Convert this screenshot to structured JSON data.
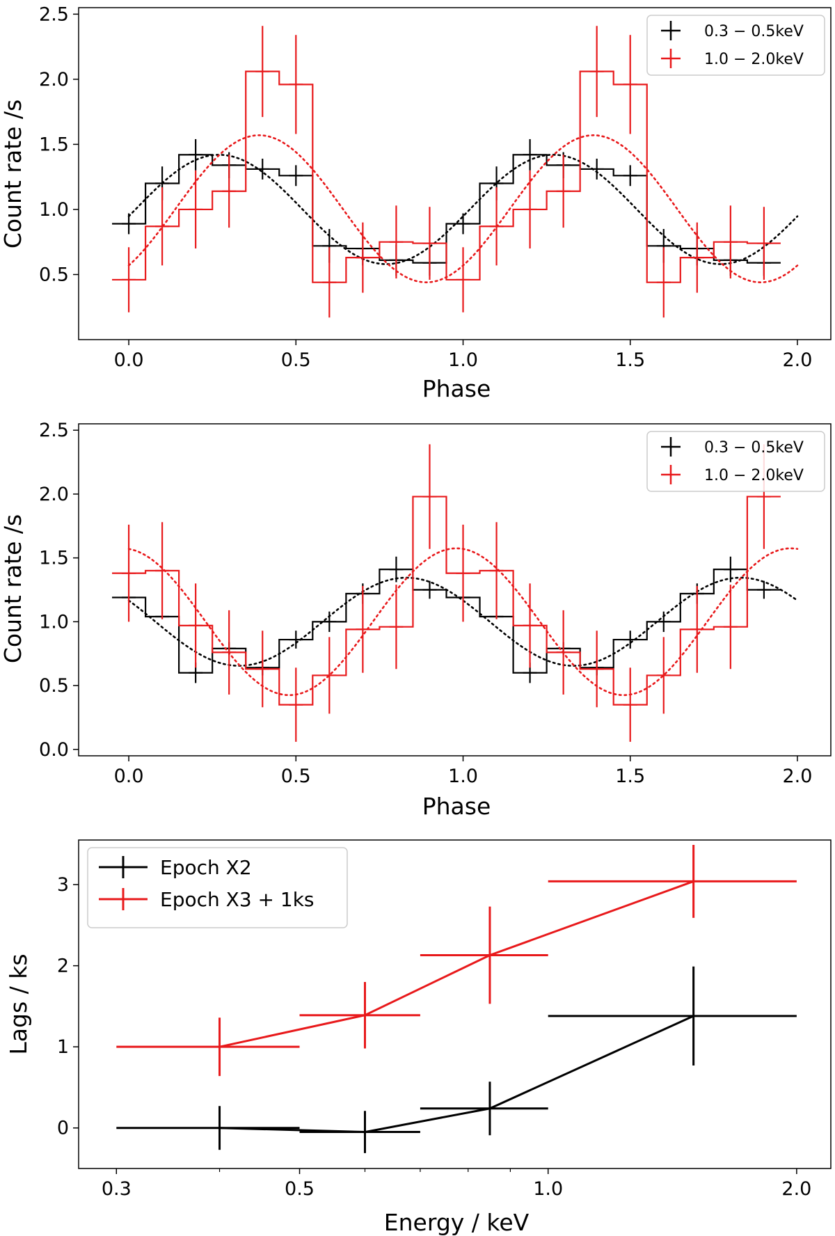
{
  "chart_data": [
    {
      "type": "line",
      "panel": "top",
      "title": "",
      "xlabel": "Phase",
      "ylabel": "Count rate /s",
      "xlim": [
        -0.15,
        2.1
      ],
      "ylim": [
        0.0,
        2.55
      ],
      "xticks": [
        0.0,
        0.5,
        1.0,
        1.5,
        2.0
      ],
      "xtick_labels": [
        "0.0",
        "0.5",
        "1.0",
        "1.5",
        "2.0"
      ],
      "yticks": [
        0.5,
        1.0,
        1.5,
        2.0,
        2.5
      ],
      "ytick_labels": [
        "0.5",
        "1.0",
        "1.5",
        "2.0",
        "2.5"
      ],
      "legend_position": "top-right",
      "series": [
        {
          "name": "0.3 − 0.5keV",
          "color": "#000000",
          "x": [
            0.0,
            0.1,
            0.2,
            0.3,
            0.4,
            0.5,
            0.6,
            0.7,
            0.8,
            0.9,
            1.0,
            1.1,
            1.2,
            1.3,
            1.4,
            1.5,
            1.6,
            1.7,
            1.8,
            1.9
          ],
          "y": [
            0.89,
            1.2,
            1.42,
            1.34,
            1.31,
            1.26,
            0.72,
            0.7,
            0.61,
            0.59,
            0.89,
            1.2,
            1.42,
            1.34,
            1.31,
            1.26,
            0.72,
            0.7,
            0.61,
            0.59
          ],
          "yerr": [
            0.08,
            0.13,
            0.12,
            0.1,
            0.08,
            0.08,
            0.13,
            0.13,
            0.12,
            0.1,
            0.08,
            0.13,
            0.12,
            0.1,
            0.08,
            0.08,
            0.13,
            0.13,
            0.12,
            0.1
          ],
          "model": {
            "mean": 1.0,
            "amplitude": 0.42,
            "peak_phase": 0.27
          }
        },
        {
          "name": "1.0 − 2.0keV",
          "color": "#e8191b",
          "x": [
            0.0,
            0.1,
            0.2,
            0.3,
            0.4,
            0.5,
            0.6,
            0.7,
            0.8,
            0.9,
            1.0,
            1.1,
            1.2,
            1.3,
            1.4,
            1.5,
            1.6,
            1.7,
            1.8,
            1.9
          ],
          "y": [
            0.46,
            0.87,
            1.0,
            1.14,
            2.06,
            1.96,
            0.44,
            0.63,
            0.75,
            0.74,
            0.46,
            0.87,
            1.0,
            1.14,
            2.06,
            1.96,
            0.44,
            0.63,
            0.75,
            0.74
          ],
          "yerr": [
            0.25,
            0.3,
            0.3,
            0.28,
            0.35,
            0.38,
            0.27,
            0.27,
            0.28,
            0.28,
            0.25,
            0.3,
            0.3,
            0.28,
            0.35,
            0.38,
            0.27,
            0.27,
            0.28,
            0.28
          ],
          "model": {
            "mean": 1.005,
            "amplitude": 0.565,
            "peak_phase": 0.39
          }
        }
      ]
    },
    {
      "type": "line",
      "panel": "middle",
      "title": "",
      "xlabel": "Phase",
      "ylabel": "Count rate /s",
      "xlim": [
        -0.15,
        2.1
      ],
      "ylim": [
        -0.05,
        2.55
      ],
      "xticks": [
        0.0,
        0.5,
        1.0,
        1.5,
        2.0
      ],
      "xtick_labels": [
        "0.0",
        "0.5",
        "1.0",
        "1.5",
        "2.0"
      ],
      "yticks": [
        0.0,
        0.5,
        1.0,
        1.5,
        2.0,
        2.5
      ],
      "ytick_labels": [
        "0.0",
        "0.5",
        "1.0",
        "1.5",
        "2.0",
        "2.5"
      ],
      "legend_position": "top-right",
      "series": [
        {
          "name": "0.3 − 0.5keV",
          "color": "#000000",
          "x": [
            0.0,
            0.1,
            0.2,
            0.3,
            0.4,
            0.5,
            0.6,
            0.7,
            0.8,
            0.9,
            1.0,
            1.1,
            1.2,
            1.3,
            1.4,
            1.5,
            1.6,
            1.7,
            1.8,
            1.9
          ],
          "y": [
            1.19,
            1.04,
            0.6,
            0.79,
            0.64,
            0.86,
            1.0,
            1.22,
            1.41,
            1.25,
            1.19,
            1.04,
            0.6,
            0.79,
            0.64,
            0.86,
            1.0,
            1.22,
            1.41,
            1.25
          ],
          "yerr": [
            0.0,
            0.0,
            0.08,
            0.05,
            0.06,
            0.07,
            0.08,
            0.08,
            0.1,
            0.07,
            0.0,
            0.0,
            0.08,
            0.05,
            0.06,
            0.07,
            0.08,
            0.08,
            0.1,
            0.07
          ],
          "model": {
            "mean": 1.0,
            "amplitude": 0.345,
            "peak_phase": 0.83
          }
        },
        {
          "name": "1.0 − 2.0keV",
          "color": "#e8191b",
          "x": [
            0.0,
            0.1,
            0.2,
            0.3,
            0.4,
            0.5,
            0.6,
            0.7,
            0.8,
            0.9,
            1.0,
            1.1,
            1.2,
            1.3,
            1.4,
            1.5,
            1.6,
            1.7,
            1.8,
            1.9
          ],
          "y": [
            1.38,
            1.4,
            0.97,
            0.76,
            0.63,
            0.35,
            0.58,
            0.94,
            0.96,
            1.98,
            1.38,
            1.4,
            0.97,
            0.76,
            0.63,
            0.35,
            0.58,
            0.94,
            0.96,
            1.98
          ],
          "yerr": [
            0.38,
            0.38,
            0.33,
            0.33,
            0.3,
            0.29,
            0.3,
            0.34,
            0.33,
            0.41,
            0.38,
            0.38,
            0.33,
            0.33,
            0.3,
            0.29,
            0.3,
            0.34,
            0.33,
            0.41
          ],
          "model": {
            "mean": 1.0,
            "amplitude": 0.575,
            "peak_phase": 0.98
          }
        }
      ]
    },
    {
      "type": "line",
      "panel": "bottom",
      "title": "",
      "xlabel": "Energy / keV",
      "ylabel": "Lags / ks",
      "xscale": "log",
      "xlim": [
        0.27,
        2.2
      ],
      "ylim": [
        -0.5,
        3.55
      ],
      "xticks": [
        0.3,
        0.5,
        1.0,
        2.0
      ],
      "xtick_labels": [
        "0.3",
        "0.5",
        "1.0",
        "2.0"
      ],
      "x_minor_ticks": [
        0.4,
        0.6,
        0.7,
        0.8,
        0.9
      ],
      "yticks": [
        0,
        1,
        2,
        3
      ],
      "ytick_labels": [
        "0",
        "1",
        "2",
        "3"
      ],
      "legend_position": "top-left",
      "series": [
        {
          "name": "Epoch X2",
          "color": "#000000",
          "x": [
            0.4,
            0.6,
            0.85,
            1.5
          ],
          "xlo": [
            0.3,
            0.5,
            0.7,
            1.0
          ],
          "xhi": [
            0.5,
            0.7,
            1.0,
            2.0
          ],
          "y": [
            0.0,
            -0.05,
            0.24,
            1.38
          ],
          "yerr": [
            0.27,
            0.26,
            0.33,
            0.61
          ]
        },
        {
          "name": "Epoch X3 + 1ks",
          "color": "#e8191b",
          "x": [
            0.4,
            0.6,
            0.85,
            1.5
          ],
          "xlo": [
            0.3,
            0.5,
            0.7,
            1.0
          ],
          "xhi": [
            0.5,
            0.7,
            1.0,
            2.0
          ],
          "y": [
            1.0,
            1.39,
            2.13,
            3.04
          ],
          "yerr": [
            0.36,
            0.41,
            0.6,
            0.45
          ]
        }
      ]
    }
  ]
}
